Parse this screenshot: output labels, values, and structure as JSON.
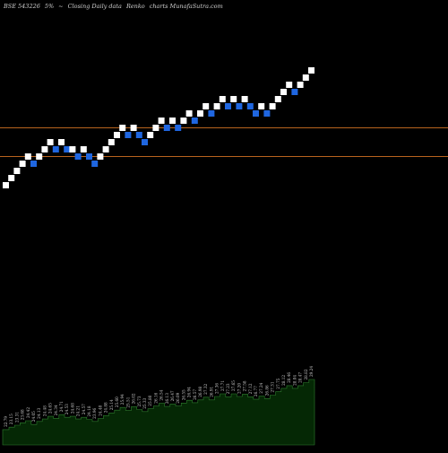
{
  "header": {
    "exchange_code": "BSE 543226",
    "change": "5%",
    "arrow": "~",
    "description": "Closing Daily data",
    "chart_kind": "Renko",
    "site": "charts MunafaSutra.com"
  },
  "colors": {
    "background": "#000000",
    "up_brick": "#ffffff",
    "down_brick": "#1f66e0",
    "level_line": "#b8631e",
    "volume_fill": "#052805",
    "volume_stroke": "#2e7d2e",
    "label_text": "#c8c8c8"
  },
  "chart_data": [
    {
      "type": "renko",
      "levels": [
        1,
        2,
        3
      ],
      "bricks": [
        {
          "dir": "up",
          "level": 1
        },
        {
          "dir": "up",
          "level": 2
        },
        {
          "dir": "up",
          "level": 3
        },
        {
          "dir": "up",
          "level": 4
        },
        {
          "dir": "up",
          "level": 5
        },
        {
          "dir": "down",
          "level": 4
        },
        {
          "dir": "up",
          "level": 5
        },
        {
          "dir": "up",
          "level": 6
        },
        {
          "dir": "up",
          "level": 7
        },
        {
          "dir": "down",
          "level": 6
        },
        {
          "dir": "up",
          "level": 7
        },
        {
          "dir": "down",
          "level": 6
        },
        {
          "dir": "up",
          "level": 6
        },
        {
          "dir": "down",
          "level": 5
        },
        {
          "dir": "up",
          "level": 6
        },
        {
          "dir": "down",
          "level": 5
        },
        {
          "dir": "down",
          "level": 4
        },
        {
          "dir": "up",
          "level": 5
        },
        {
          "dir": "up",
          "level": 6
        },
        {
          "dir": "up",
          "level": 7
        },
        {
          "dir": "up",
          "level": 8
        },
        {
          "dir": "up",
          "level": 9
        },
        {
          "dir": "down",
          "level": 8
        },
        {
          "dir": "up",
          "level": 9
        },
        {
          "dir": "down",
          "level": 8
        },
        {
          "dir": "down",
          "level": 7
        },
        {
          "dir": "up",
          "level": 8
        },
        {
          "dir": "up",
          "level": 9
        },
        {
          "dir": "up",
          "level": 10
        },
        {
          "dir": "down",
          "level": 9
        },
        {
          "dir": "up",
          "level": 10
        },
        {
          "dir": "down",
          "level": 9
        },
        {
          "dir": "up",
          "level": 10
        },
        {
          "dir": "up",
          "level": 11
        },
        {
          "dir": "down",
          "level": 10
        },
        {
          "dir": "up",
          "level": 11
        },
        {
          "dir": "up",
          "level": 12
        },
        {
          "dir": "down",
          "level": 11
        },
        {
          "dir": "up",
          "level": 12
        },
        {
          "dir": "up",
          "level": 13
        },
        {
          "dir": "down",
          "level": 12
        },
        {
          "dir": "up",
          "level": 13
        },
        {
          "dir": "down",
          "level": 12
        },
        {
          "dir": "up",
          "level": 13
        },
        {
          "dir": "down",
          "level": 12
        },
        {
          "dir": "down",
          "level": 11
        },
        {
          "dir": "up",
          "level": 12
        },
        {
          "dir": "down",
          "level": 11
        },
        {
          "dir": "up",
          "level": 12
        },
        {
          "dir": "up",
          "level": 13
        },
        {
          "dir": "up",
          "level": 14
        },
        {
          "dir": "up",
          "level": 15
        },
        {
          "dir": "down",
          "level": 14
        },
        {
          "dir": "up",
          "level": 15
        },
        {
          "dir": "up",
          "level": 16
        },
        {
          "dir": "up",
          "level": 17
        }
      ],
      "lines": [
        {
          "name": "upper-level-line",
          "level": 9.0
        },
        {
          "name": "lower-level-line",
          "level": 5.0
        }
      ]
    },
    {
      "type": "area",
      "values": [
        4.5,
        5.2,
        5.8,
        6.5,
        7.1,
        6.0,
        6.9,
        7.6,
        8.4,
        7.8,
        8.9,
        8.1,
        8.4,
        7.6,
        8.1,
        7.5,
        6.9,
        7.7,
        8.6,
        9.4,
        10.2,
        11.0,
        10.1,
        11.2,
        10.4,
        9.8,
        10.6,
        11.4,
        12.2,
        11.3,
        12.0,
        11.4,
        12.3,
        13.1,
        12.4,
        13.2,
        14.0,
        13.2,
        14.2,
        15.0,
        14.1,
        15.0,
        14.2,
        14.9,
        14.1,
        13.4,
        14.3,
        13.6,
        14.6,
        15.6,
        16.6,
        17.4,
        16.6,
        17.4,
        18.3,
        19.2
      ],
      "labels": [
        "22.79",
        "23.15",
        "23.31",
        "23.68",
        "24.42",
        "24.05",
        "24.13",
        "24.48",
        "24.65",
        "24.34",
        "24.71",
        "24.53",
        "24.68",
        "24.21",
        "24.57",
        "24.18",
        "23.96",
        "24.40",
        "24.88",
        "25.14",
        "25.60",
        "25.94",
        "25.51",
        "26.02",
        "25.73",
        "25.33",
        "25.80",
        "26.16",
        "26.54",
        "26.13",
        "26.47",
        "26.09",
        "26.55",
        "26.94",
        "26.57",
        "26.98",
        "27.32",
        "26.91",
        "27.36",
        "27.71",
        "27.23",
        "27.65",
        "27.20",
        "27.58",
        "27.12",
        "26.77",
        "27.24",
        "26.86",
        "27.31",
        "27.75",
        "28.12",
        "28.46",
        "28.04",
        "28.47",
        "28.82",
        "29.24"
      ]
    }
  ]
}
